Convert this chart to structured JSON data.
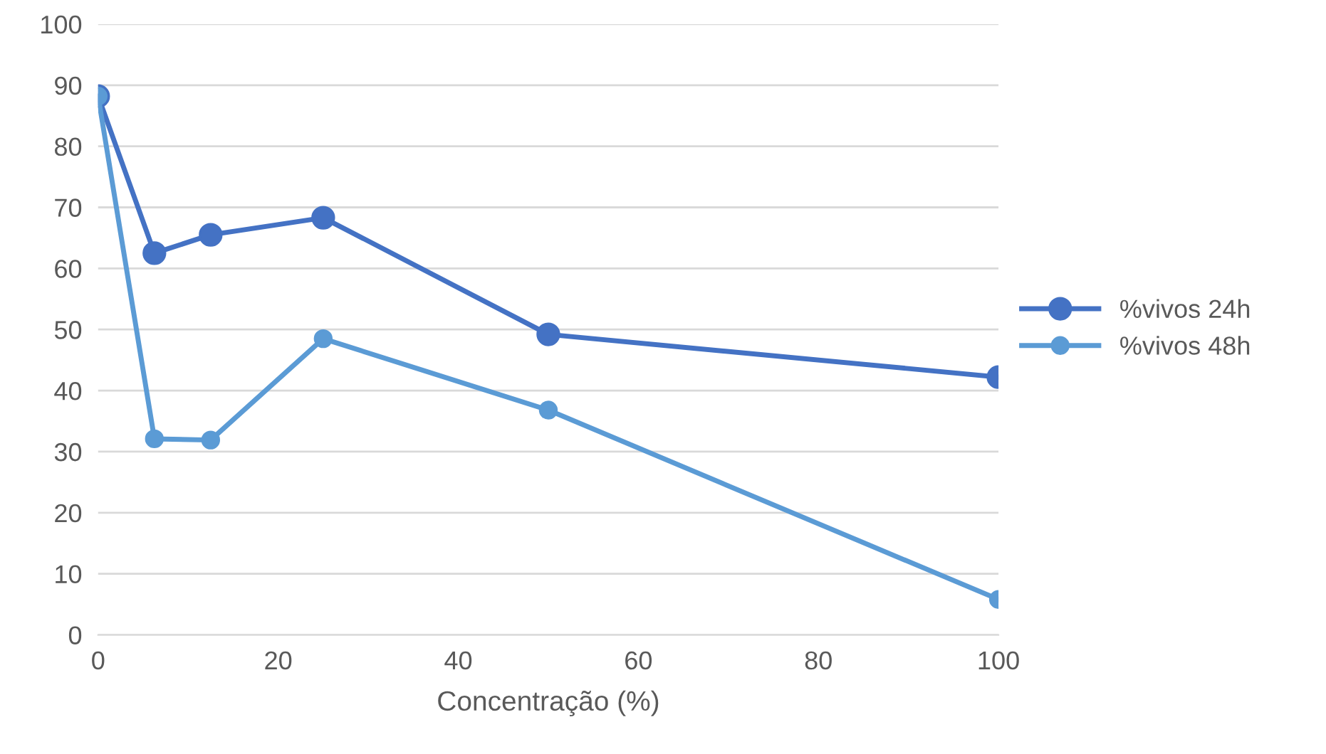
{
  "chart_data": {
    "type": "line",
    "xlabel": "Concentração (%)",
    "series": [
      {
        "name": "%vivos 24h",
        "color": "#4472c4",
        "x": [
          0,
          6.25,
          12.5,
          25,
          50,
          100
        ],
        "values": [
          88.2,
          62.5,
          65.5,
          68.3,
          49.2,
          42.2
        ]
      },
      {
        "name": "%vivos 48h",
        "color": "#5b9bd5",
        "x": [
          0,
          6.25,
          12.5,
          25,
          50,
          100
        ],
        "values": [
          88.2,
          32.1,
          31.9,
          48.5,
          36.8,
          5.8
        ]
      }
    ],
    "xlim": [
      0,
      100
    ],
    "xticks": [
      0,
      20,
      40,
      60,
      80,
      100
    ],
    "ylim": [
      0,
      100
    ],
    "yticks": [
      0,
      10,
      20,
      30,
      40,
      50,
      60,
      70,
      80,
      90,
      100
    ],
    "grid": "y",
    "legend": "right",
    "marker": "circle",
    "line_style": "solid"
  }
}
